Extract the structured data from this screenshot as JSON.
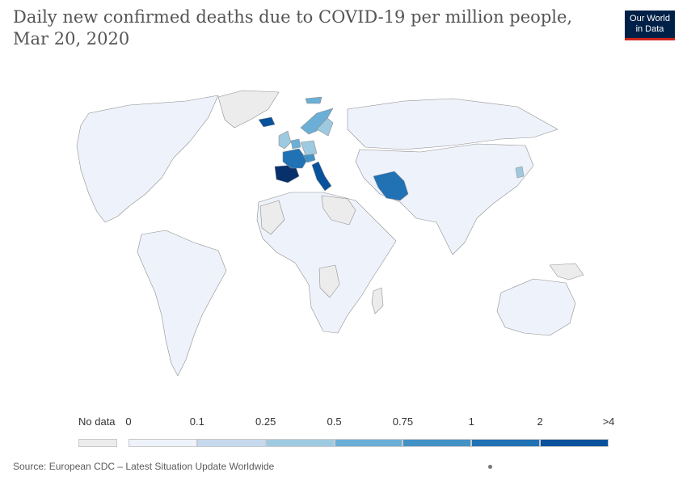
{
  "title": "Daily new confirmed deaths due to COVID-19 per million people, Mar 20, 2020",
  "logo": {
    "line1": "Our World",
    "line2": "in Data"
  },
  "legend": {
    "no_data_label": "No data",
    "no_data_color": "#ececec",
    "bins": [
      {
        "label": "0",
        "color": "#eef2fb"
      },
      {
        "label": "0.1",
        "color": "#c6d9ee"
      },
      {
        "label": "0.25",
        "color": "#9ecae1"
      },
      {
        "label": "0.5",
        "color": "#6baed6"
      },
      {
        "label": "0.75",
        "color": "#4292c6"
      },
      {
        "label": "1",
        "color": "#2171b5"
      },
      {
        "label": "2",
        "color": "#08519c"
      },
      {
        "label": ">4",
        "color": ""
      }
    ]
  },
  "regions": [
    {
      "name": "North America",
      "color": "#eef2fb"
    },
    {
      "name": "Greenland",
      "color": "#ececec"
    },
    {
      "name": "South America",
      "color": "#eef2fb"
    },
    {
      "name": "Africa",
      "color": "#eef2fb"
    },
    {
      "name": "Western Sahara / Mali",
      "color": "#ececec"
    },
    {
      "name": "Sudan / Libya",
      "color": "#ececec"
    },
    {
      "name": "Central Africa",
      "color": "#ececec"
    },
    {
      "name": "Madagascar",
      "color": "#ececec"
    },
    {
      "name": "Russia",
      "color": "#eef2fb"
    },
    {
      "name": "Asia",
      "color": "#eef2fb"
    },
    {
      "name": "Australia",
      "color": "#eef2fb"
    },
    {
      "name": "Papua New Guinea",
      "color": "#ececec"
    },
    {
      "name": "Spain",
      "color": "#08306b"
    },
    {
      "name": "Italy",
      "color": "#08519c"
    },
    {
      "name": "France",
      "color": "#2171b5"
    },
    {
      "name": "Switzerland",
      "color": "#4292c6"
    },
    {
      "name": "Netherlands",
      "color": "#6baed6"
    },
    {
      "name": "UK",
      "color": "#9ecae1"
    },
    {
      "name": "Germany",
      "color": "#9ecae1"
    },
    {
      "name": "Norway",
      "color": "#6baed6"
    },
    {
      "name": "Sweden",
      "color": "#9ecae1"
    },
    {
      "name": "Iceland",
      "color": "#08519c"
    },
    {
      "name": "Iran",
      "color": "#2171b5"
    },
    {
      "name": "South Korea",
      "color": "#9ecae1"
    },
    {
      "name": "Svalbard",
      "color": "#6baed6"
    }
  ],
  "source": "Source: European CDC – Latest Situation Update Worldwide"
}
